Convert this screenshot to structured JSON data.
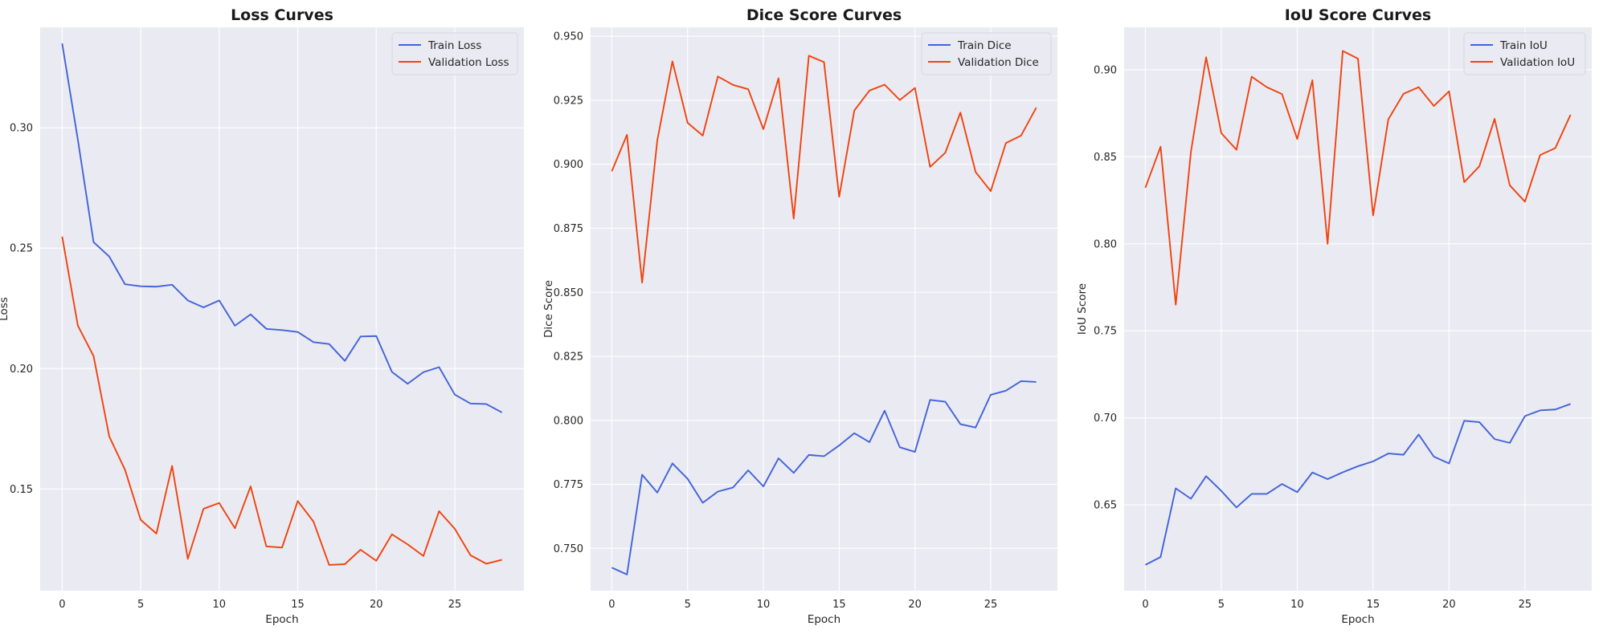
{
  "chart_data": [
    {
      "type": "line",
      "title": "Loss Curves",
      "xlabel": "Epoch",
      "ylabel": "Loss",
      "xlim": [
        -1.4,
        29.4
      ],
      "ylim": [
        0.1078,
        0.3417
      ],
      "xticks": [
        0,
        5,
        10,
        15,
        20,
        25
      ],
      "yticks": [
        0.15,
        0.2,
        0.25,
        0.3
      ],
      "ytick_labels": [
        "0.15",
        "0.20",
        "0.25",
        "0.30"
      ],
      "grid": true,
      "legend_position": "top-right",
      "x": [
        0,
        1,
        2,
        3,
        4,
        5,
        6,
        7,
        8,
        9,
        10,
        11,
        12,
        13,
        14,
        15,
        16,
        17,
        18,
        19,
        20,
        21,
        22,
        23,
        24,
        25,
        26,
        27,
        28
      ],
      "series": [
        {
          "name": "Train Loss",
          "color": "#4263d8",
          "values": [
            0.335,
            0.295,
            0.2525,
            0.2465,
            0.235,
            0.2342,
            0.234,
            0.2348,
            0.2283,
            0.2254,
            0.2283,
            0.2178,
            0.2225,
            0.2165,
            0.216,
            0.2152,
            0.211,
            0.2102,
            0.2032,
            0.2133,
            0.2135,
            0.1986,
            0.1937,
            0.1985,
            0.2006,
            0.1892,
            0.1855,
            0.1853,
            0.1818
          ]
        },
        {
          "name": "Validation Loss",
          "color": "#f0430e",
          "values": [
            0.2548,
            0.2178,
            0.2052,
            0.1718,
            0.158,
            0.1372,
            0.1315,
            0.1596,
            0.121,
            0.1418,
            0.1442,
            0.1337,
            0.1511,
            0.1262,
            0.1257,
            0.145,
            0.1365,
            0.1185,
            0.1188,
            0.1248,
            0.1202,
            0.1312,
            0.127,
            0.1222,
            0.1408,
            0.1335,
            0.1225,
            0.119,
            0.1206
          ]
        }
      ]
    },
    {
      "type": "line",
      "title": "Dice Score Curves",
      "xlabel": "Epoch",
      "ylabel": "Dice Score",
      "xlim": [
        -1.4,
        29.4
      ],
      "ylim": [
        0.7335,
        0.9535
      ],
      "xticks": [
        0,
        5,
        10,
        15,
        20,
        25
      ],
      "yticks": [
        0.75,
        0.775,
        0.8,
        0.825,
        0.85,
        0.875,
        0.9,
        0.925,
        0.95
      ],
      "ytick_labels": [
        "0.750",
        "0.775",
        "0.800",
        "0.825",
        "0.850",
        "0.875",
        "0.900",
        "0.925",
        "0.950"
      ],
      "grid": true,
      "legend_position": "top-right",
      "x": [
        0,
        1,
        2,
        3,
        4,
        5,
        6,
        7,
        8,
        9,
        10,
        11,
        12,
        13,
        14,
        15,
        16,
        17,
        18,
        19,
        20,
        21,
        22,
        23,
        24,
        25,
        26,
        27,
        28
      ],
      "series": [
        {
          "name": "Train Dice",
          "color": "#4263d8",
          "values": [
            0.7425,
            0.7398,
            0.7788,
            0.7718,
            0.7832,
            0.7772,
            0.7678,
            0.7722,
            0.7738,
            0.7805,
            0.7742,
            0.7852,
            0.7795,
            0.7865,
            0.786,
            0.7902,
            0.795,
            0.7915,
            0.8038,
            0.7895,
            0.7877,
            0.808,
            0.8073,
            0.7985,
            0.7972,
            0.81,
            0.8116,
            0.8153,
            0.815
          ]
        },
        {
          "name": "Validation Dice",
          "color": "#f0430e",
          "values": [
            0.8973,
            0.9115,
            0.8538,
            0.9093,
            0.9402,
            0.9162,
            0.9112,
            0.9343,
            0.931,
            0.9293,
            0.9137,
            0.9336,
            0.8788,
            0.9424,
            0.9399,
            0.8873,
            0.921,
            0.9288,
            0.9311,
            0.9251,
            0.9298,
            0.899,
            0.9045,
            0.9202,
            0.897,
            0.8895,
            0.9083,
            0.9112,
            0.9221
          ]
        }
      ]
    },
    {
      "type": "line",
      "title": "IoU Score Curves",
      "xlabel": "Epoch",
      "ylabel": "IoU Score",
      "xlim": [
        -1.4,
        29.4
      ],
      "ylim": [
        0.6007,
        0.9244
      ],
      "xticks": [
        0,
        5,
        10,
        15,
        20,
        25
      ],
      "yticks": [
        0.65,
        0.7,
        0.75,
        0.8,
        0.85,
        0.9
      ],
      "ytick_labels": [
        "0.65",
        "0.70",
        "0.75",
        "0.80",
        "0.85",
        "0.90"
      ],
      "grid": true,
      "legend_position": "top-right",
      "x": [
        0,
        1,
        2,
        3,
        4,
        5,
        6,
        7,
        8,
        9,
        10,
        11,
        12,
        13,
        14,
        15,
        16,
        17,
        18,
        19,
        20,
        21,
        22,
        23,
        24,
        25,
        26,
        27,
        28
      ],
      "series": [
        {
          "name": "Train IoU",
          "color": "#4263d8",
          "values": [
            0.6155,
            0.62,
            0.6595,
            0.6535,
            0.6665,
            0.658,
            0.6485,
            0.6563,
            0.6563,
            0.662,
            0.6573,
            0.6686,
            0.6648,
            0.6687,
            0.6722,
            0.675,
            0.6795,
            0.6788,
            0.6904,
            0.6777,
            0.6738,
            0.6983,
            0.6975,
            0.6878,
            0.6856,
            0.701,
            0.7043,
            0.7048,
            0.708
          ]
        },
        {
          "name": "Validation IoU",
          "color": "#f0430e",
          "values": [
            0.8322,
            0.8558,
            0.765,
            0.8528,
            0.9072,
            0.8636,
            0.854,
            0.896,
            0.89,
            0.886,
            0.8602,
            0.894,
            0.8,
            0.9108,
            0.9064,
            0.8163,
            0.8715,
            0.8862,
            0.89,
            0.8792,
            0.8876,
            0.8354,
            0.8446,
            0.8718,
            0.8336,
            0.8242,
            0.851,
            0.855,
            0.8741
          ]
        }
      ]
    }
  ]
}
